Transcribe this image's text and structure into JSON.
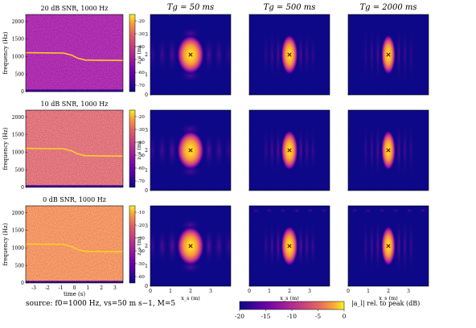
{
  "figure": {
    "source_caption": "source: f0=1000 Hz, vs=50 m s−1, M=5",
    "colorbar_label": "|a_l| rel. to peak (dB)"
  },
  "chart_data": [
    {
      "type": "heatmap",
      "kind": "spectrogram",
      "title": "20 dB SNR, 1000 Hz",
      "xlabel": "",
      "ylabel": "frequency (Hz)",
      "xlim": [
        -3.6,
        3.6
      ],
      "ylim": [
        0,
        2200
      ],
      "x_ticks": [
        "-3",
        "-2",
        "-1",
        "0",
        "1",
        "2",
        "3"
      ],
      "y_ticks": [
        "0",
        "500",
        "1000",
        "1500",
        "2000"
      ],
      "series": [
        {
          "x": [
            -3.6,
            -0.8,
            -0.2,
            0.2,
            0.8,
            3.6
          ],
          "y": [
            1110,
            1100,
            1040,
            960,
            900,
            890
          ]
        }
      ],
      "colorbar": {
        "ticks": [
          "-20",
          "-30",
          "-40",
          "-50",
          "-60",
          "-70"
        ],
        "range": [
          -75,
          -15
        ]
      }
    },
    {
      "type": "heatmap",
      "kind": "spectrogram",
      "title": "10 dB SNR, 1000 Hz",
      "xlabel": "",
      "ylabel": "frequency (Hz)",
      "xlim": [
        -3.6,
        3.6
      ],
      "ylim": [
        0,
        2200
      ],
      "x_ticks": [
        "-3",
        "-2",
        "-1",
        "0",
        "1",
        "2",
        "3"
      ],
      "y_ticks": [
        "0",
        "500",
        "1000",
        "1500",
        "2000"
      ],
      "series": [
        {
          "x": [
            -3.6,
            -0.8,
            -0.2,
            0.2,
            0.8,
            3.6
          ],
          "y": [
            1110,
            1100,
            1040,
            960,
            900,
            890
          ]
        }
      ],
      "colorbar": {
        "ticks": [
          "-20",
          "-30",
          "-40",
          "-50",
          "-60",
          "-70"
        ],
        "range": [
          -75,
          -15
        ]
      }
    },
    {
      "type": "heatmap",
      "kind": "spectrogram",
      "title": "0 dB SNR, 1000 Hz",
      "xlabel": "time (s)",
      "ylabel": "frequency (Hz)",
      "xlim": [
        -3.6,
        3.6
      ],
      "ylim": [
        0,
        2200
      ],
      "x_ticks": [
        "-3",
        "-2",
        "-1",
        "0",
        "1",
        "2",
        "3"
      ],
      "y_ticks": [
        "0",
        "500",
        "1000",
        "1500",
        "2000"
      ],
      "series": [
        {
          "x": [
            -3.6,
            -0.8,
            -0.2,
            0.2,
            0.8,
            3.6
          ],
          "y": [
            1110,
            1100,
            1040,
            960,
            900,
            890
          ]
        }
      ],
      "colorbar": {
        "ticks": [
          "-10",
          "-20",
          "-30",
          "-40",
          "-50",
          "-60"
        ],
        "range": [
          -65,
          -5
        ]
      }
    },
    {
      "type": "heatmap",
      "kind": "localization_grid",
      "column_titles": [
        "Tg = 50 ms",
        "Tg = 500 ms",
        "Tg = 2000 ms"
      ],
      "row_labels": [
        "20 dB SNR",
        "10 dB SNR",
        "0 dB SNR"
      ],
      "xlabel": "x_s (m)",
      "ylabel": "z_s (m)",
      "xlim": [
        0,
        4
      ],
      "ylim": [
        0,
        4
      ],
      "x_ticks": [
        "0",
        "1",
        "2",
        "3"
      ],
      "y_ticks": [
        "0",
        "1",
        "2",
        "3"
      ],
      "true_source": {
        "x": 2,
        "z": 2
      },
      "colorbar": {
        "ticks": [
          "-20",
          "-15",
          "-10",
          "-5",
          "0"
        ],
        "range": [
          -20,
          0
        ]
      },
      "peak_half_width_m": {
        "Tg_50ms": {
          "x": 0.42,
          "z": 0.6
        },
        "Tg_500ms": {
          "x": 0.26,
          "z": 0.62
        },
        "Tg_2000ms": {
          "x": 0.22,
          "z": 0.62
        }
      }
    }
  ]
}
